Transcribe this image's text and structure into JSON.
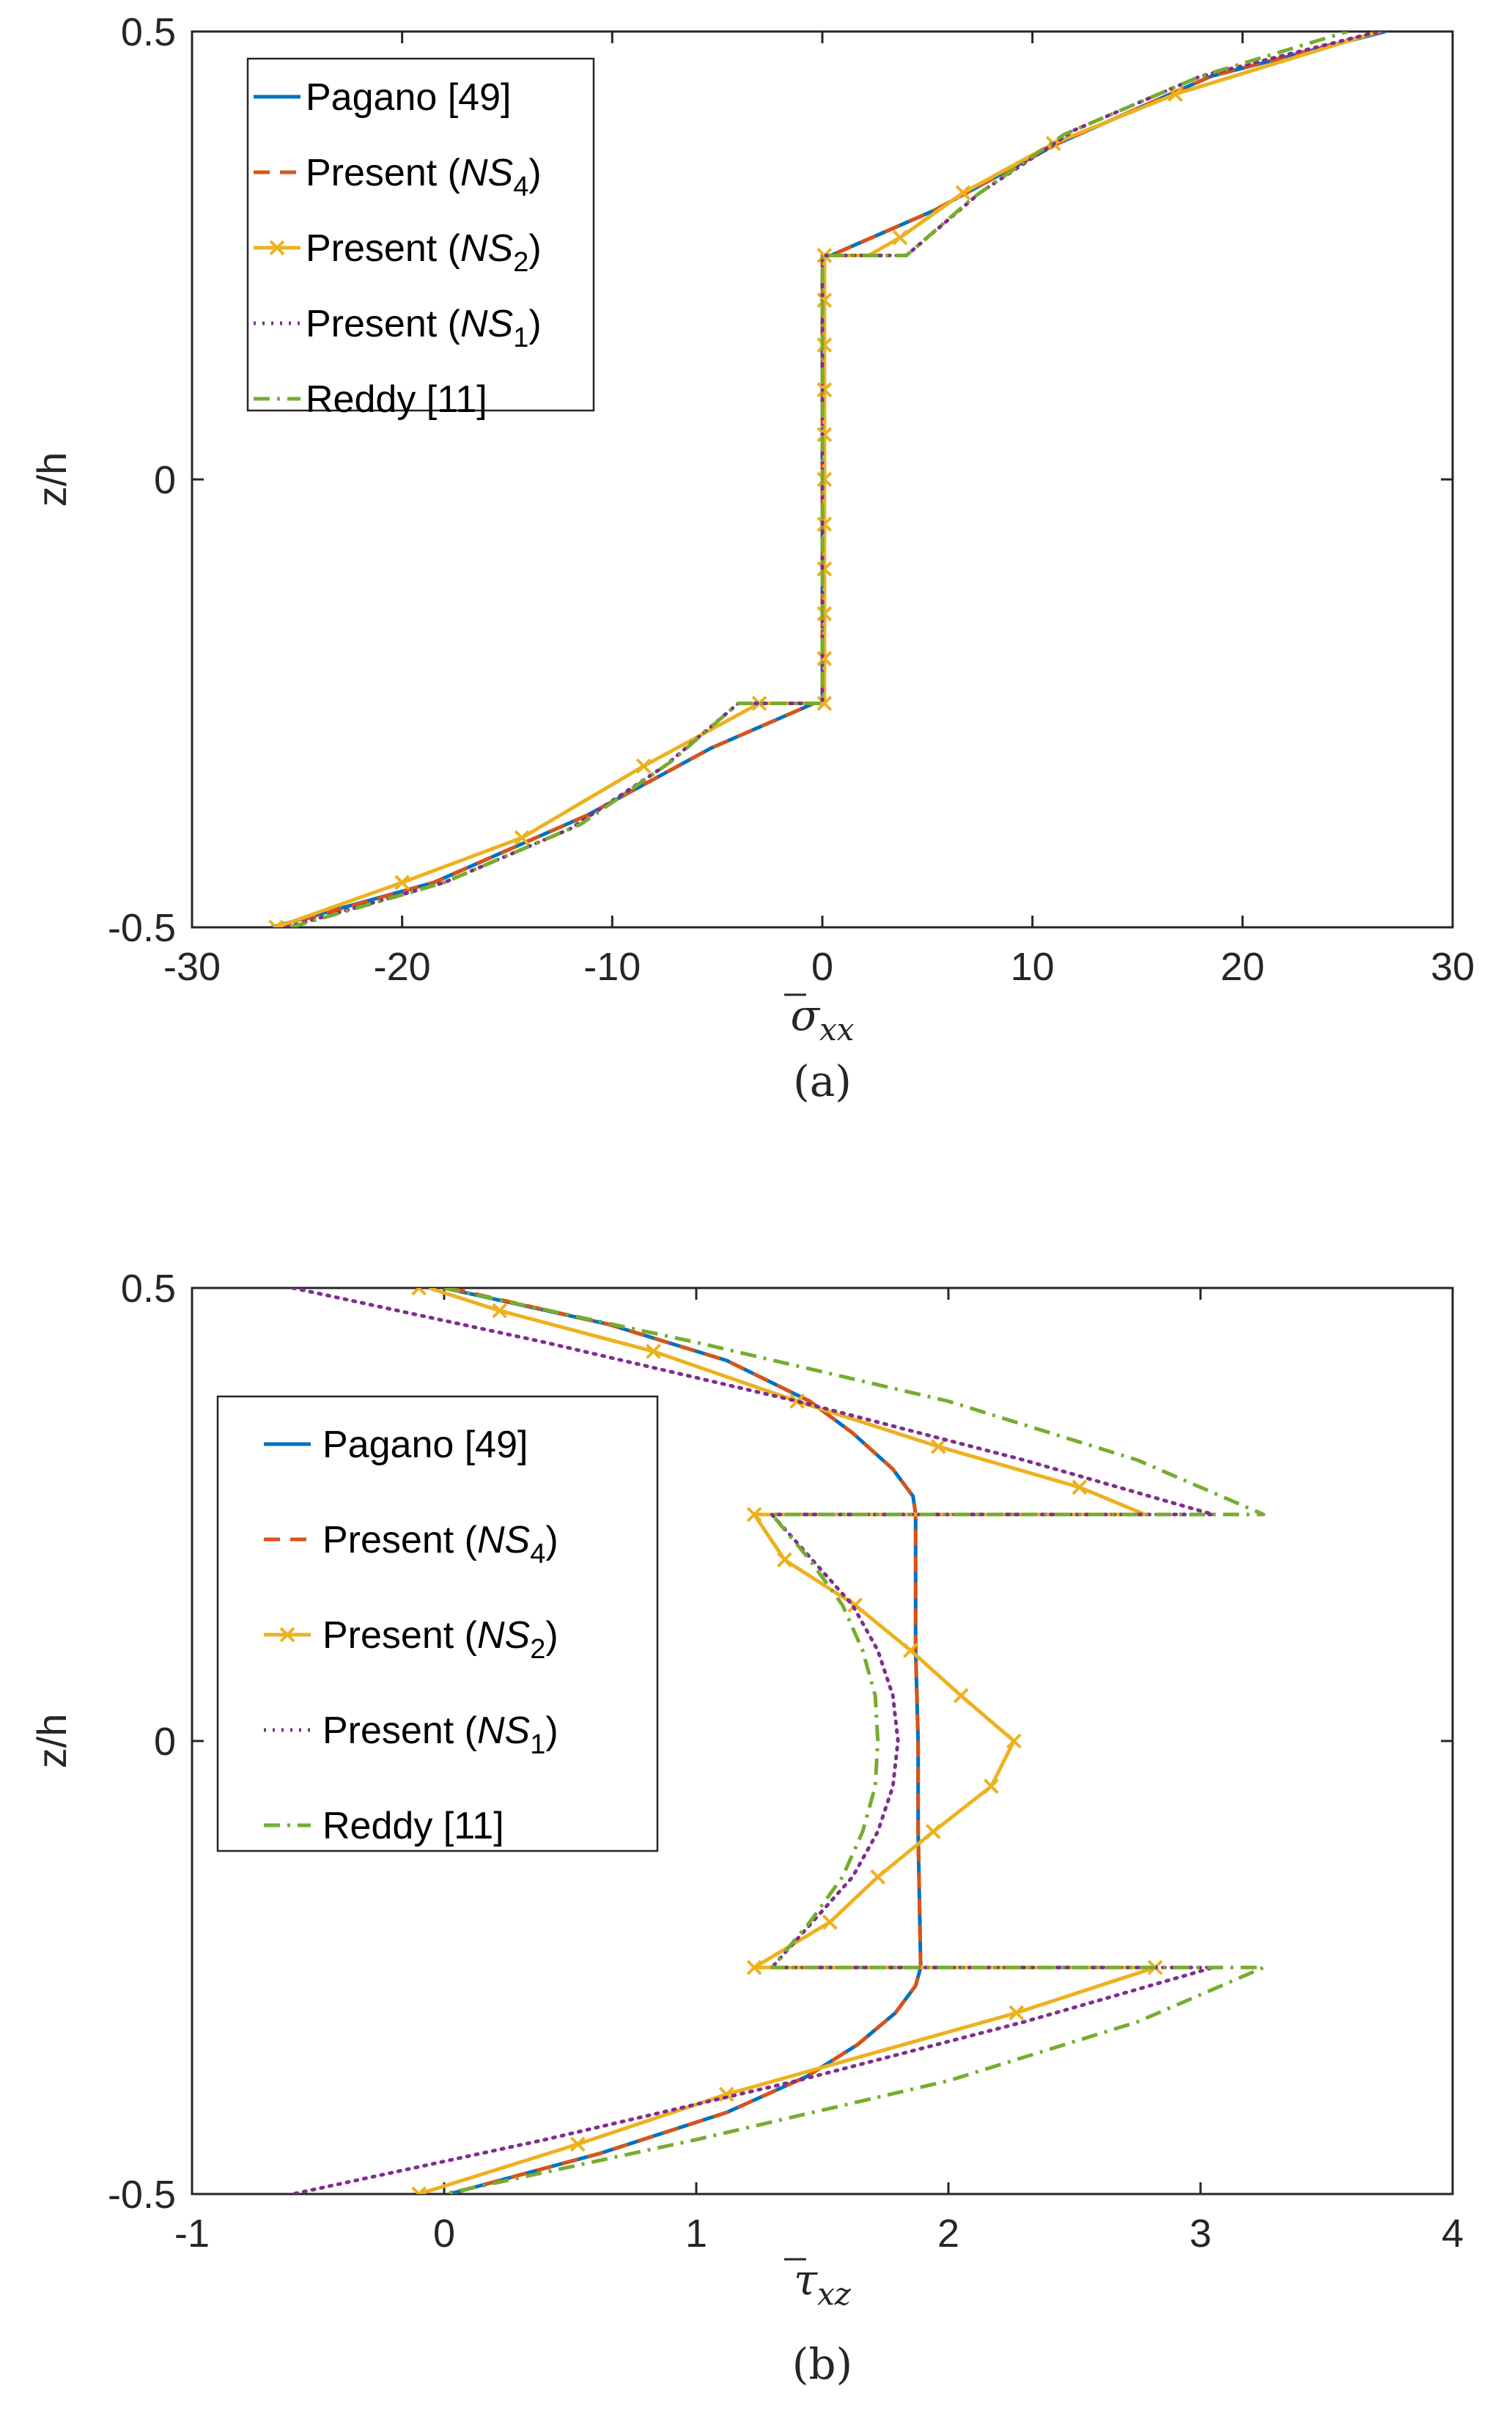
{
  "chart_data": [
    {
      "type": "line",
      "panel": "(a)",
      "caption": "(a)",
      "xlabel_base": "σ",
      "xlabel_sub": "xx",
      "ylabel": "z/h",
      "xlim": [
        -30,
        30
      ],
      "ylim": [
        -0.5,
        0.5
      ],
      "xticks": [
        "-30",
        "-20",
        "-10",
        "0",
        "10",
        "20",
        "30"
      ],
      "yticks": [
        "-0.5",
        "0",
        "0.5"
      ],
      "legend_position": "top-left",
      "legend": [
        {
          "text": "Pagano [49]"
        },
        {
          "text": "Present (",
          "ital": "NS",
          "sub": "4",
          "tail": ")"
        },
        {
          "text": "Present (",
          "ital": "NS",
          "sub": "2",
          "tail": ")"
        },
        {
          "text": "Present (",
          "ital": "NS",
          "sub": "1",
          "tail": ")"
        },
        {
          "text": "Reddy [11]"
        }
      ],
      "series": [
        {
          "name": "Pagano [49]",
          "color": "#0072BD",
          "style": "solid",
          "x": [
            -26.2,
            -18.5,
            -11.2,
            -5.3,
            -0.4,
            0.0,
            0.0,
            0.0,
            0.4,
            5.3,
            11.2,
            18.5,
            26.8
          ],
          "y": [
            -0.5,
            -0.45,
            -0.375,
            -0.3,
            -0.25,
            -0.25,
            0.0,
            0.25,
            0.25,
            0.3,
            0.375,
            0.45,
            0.5
          ]
        },
        {
          "name": "Present (NS4)",
          "color": "#D95319",
          "style": "dashed",
          "x": [
            -26.0,
            -18.5,
            -11.2,
            -5.3,
            -0.4,
            0.0,
            0.0,
            0.0,
            0.4,
            5.3,
            11.2,
            18.5,
            26.6
          ],
          "y": [
            -0.5,
            -0.45,
            -0.375,
            -0.3,
            -0.25,
            -0.25,
            0.0,
            0.25,
            0.25,
            0.3,
            0.375,
            0.45,
            0.5
          ]
        },
        {
          "name": "Present (NS2)",
          "color": "#EDB120",
          "style": "solid-x",
          "x": [
            -26.0,
            -20.0,
            -14.3,
            -8.5,
            -3.0,
            0.1,
            0.1,
            0.1,
            0.1,
            0.1,
            0.1,
            0.1,
            0.1,
            0.1,
            0.1,
            0.1,
            0.1,
            0.1,
            0.1,
            0.1,
            0.1,
            0.1,
            2.2,
            3.7,
            6.7,
            11.0,
            16.8,
            26.5
          ],
          "y": [
            -0.5,
            -0.45,
            -0.4,
            -0.32,
            -0.25,
            -0.25,
            -0.2,
            -0.15,
            -0.1,
            -0.05,
            0.0,
            0.05,
            0.1,
            0.15,
            0.2,
            0.25,
            0.25,
            0.25,
            0.25,
            0.25,
            0.25,
            0.25,
            0.25,
            0.27,
            0.32,
            0.375,
            0.43,
            0.5
          ],
          "markers": [
            [
              -26.0,
              -0.5
            ],
            [
              -20.0,
              -0.45
            ],
            [
              -14.3,
              -0.4
            ],
            [
              -8.5,
              -0.32
            ],
            [
              -3.0,
              -0.25
            ],
            [
              0.1,
              -0.25
            ],
            [
              0.1,
              -0.2
            ],
            [
              0.1,
              -0.15
            ],
            [
              0.1,
              -0.1
            ],
            [
              0.1,
              -0.05
            ],
            [
              0.1,
              0.0
            ],
            [
              0.1,
              0.05
            ],
            [
              0.1,
              0.1
            ],
            [
              0.1,
              0.15
            ],
            [
              0.1,
              0.2
            ],
            [
              0.1,
              0.25
            ],
            [
              3.7,
              0.27
            ],
            [
              6.7,
              0.32
            ],
            [
              11.0,
              0.375
            ],
            [
              16.8,
              0.43
            ]
          ]
        },
        {
          "name": "Present (NS1)",
          "color": "#7E2F8E",
          "style": "dotted",
          "x": [
            -25.5,
            -18.0,
            -12.0,
            -7.5,
            -4.0,
            0.0,
            0.0,
            0.0,
            4.0,
            7.5,
            12.0,
            18.0,
            26.5
          ],
          "y": [
            -0.5,
            -0.45,
            -0.39,
            -0.32,
            -0.25,
            -0.25,
            0.0,
            0.25,
            0.25,
            0.32,
            0.39,
            0.45,
            0.5
          ]
        },
        {
          "name": "Reddy [11]",
          "color": "#77AC30",
          "style": "dashdot",
          "x": [
            -25.3,
            -18.0,
            -11.5,
            -7.2,
            -4.0,
            0.0,
            0.0,
            0.0,
            4.0,
            7.2,
            11.5,
            18.0,
            25.0
          ],
          "y": [
            -0.5,
            -0.45,
            -0.385,
            -0.315,
            -0.25,
            -0.25,
            0.0,
            0.25,
            0.25,
            0.315,
            0.385,
            0.45,
            0.5
          ]
        }
      ]
    },
    {
      "type": "line",
      "panel": "(b)",
      "caption": "(b)",
      "xlabel_base": "τ",
      "xlabel_sub": "xz",
      "ylabel": "z/h",
      "xlim": [
        -1,
        4
      ],
      "ylim": [
        -0.5,
        0.5
      ],
      "xticks": [
        "-1",
        "0",
        "1",
        "2",
        "3",
        "4"
      ],
      "yticks": [
        "-0.5",
        "0",
        "0.5"
      ],
      "legend_position": "center-left",
      "legend": [
        {
          "text": "Pagano [49]"
        },
        {
          "text": "Present (",
          "ital": "NS",
          "sub": "4",
          "tail": ")"
        },
        {
          "text": "Present (",
          "ital": "NS",
          "sub": "2",
          "tail": ")"
        },
        {
          "text": "Present (",
          "ital": "NS",
          "sub": "1",
          "tail": ")"
        },
        {
          "text": "Reddy [11]"
        }
      ],
      "series": [
        {
          "name": "Pagano [49]",
          "color": "#0072BD",
          "style": "solid",
          "x": [
            0.0,
            0.65,
            1.12,
            1.45,
            1.62,
            1.78,
            1.86,
            1.87,
            1.87,
            1.88,
            1.88,
            1.89,
            1.87,
            1.79,
            1.64,
            1.44,
            1.12,
            0.62,
            0.02
          ],
          "y": [
            0.5,
            0.46,
            0.42,
            0.375,
            0.34,
            0.3,
            0.27,
            0.25,
            0.1,
            0.0,
            -0.1,
            -0.25,
            -0.27,
            -0.3,
            -0.335,
            -0.37,
            -0.41,
            -0.455,
            -0.5
          ]
        },
        {
          "name": "Present (NS4)",
          "color": "#D95319",
          "style": "dashed",
          "x": [
            0.02,
            0.65,
            1.12,
            1.45,
            1.62,
            1.78,
            1.86,
            1.87,
            1.87,
            1.88,
            1.88,
            1.89,
            1.87,
            1.79,
            1.64,
            1.44,
            1.12,
            0.62,
            0.02
          ],
          "y": [
            0.5,
            0.46,
            0.42,
            0.375,
            0.34,
            0.3,
            0.27,
            0.25,
            0.1,
            0.0,
            -0.1,
            -0.25,
            -0.27,
            -0.3,
            -0.335,
            -0.37,
            -0.41,
            -0.455,
            -0.5
          ]
        },
        {
          "name": "Present (NS2)",
          "color": "#EDB120",
          "style": "solid-x",
          "x": [
            -0.06,
            0.22,
            0.83,
            1.4,
            1.96,
            2.52,
            2.78,
            1.23,
            1.35,
            1.63,
            1.85,
            2.05,
            2.26,
            2.17,
            1.94,
            1.72,
            1.53,
            1.23,
            2.82,
            2.27,
            1.12,
            0.53,
            -0.1
          ],
          "y": [
            0.5,
            0.475,
            0.43,
            0.375,
            0.325,
            0.28,
            0.25,
            0.25,
            0.2,
            0.15,
            0.1,
            0.05,
            0.0,
            -0.05,
            -0.1,
            -0.15,
            -0.2,
            -0.25,
            -0.25,
            -0.3,
            -0.39,
            -0.445,
            -0.5
          ],
          "markers": [
            [
              -0.1,
              0.5
            ],
            [
              0.22,
              0.475
            ],
            [
              0.83,
              0.43
            ],
            [
              1.4,
              0.375
            ],
            [
              1.96,
              0.325
            ],
            [
              2.52,
              0.28
            ],
            [
              1.23,
              0.25
            ],
            [
              1.35,
              0.2
            ],
            [
              1.63,
              0.15
            ],
            [
              1.85,
              0.1
            ],
            [
              2.05,
              0.05
            ],
            [
              2.26,
              0.0
            ],
            [
              2.17,
              -0.05
            ],
            [
              1.94,
              -0.1
            ],
            [
              1.72,
              -0.15
            ],
            [
              1.53,
              -0.2
            ],
            [
              1.23,
              -0.25
            ],
            [
              2.82,
              -0.25
            ],
            [
              2.27,
              -0.3
            ],
            [
              1.12,
              -0.39
            ],
            [
              0.53,
              -0.445
            ],
            [
              -0.1,
              -0.5
            ]
          ]
        },
        {
          "name": "Present (NS1)",
          "color": "#7E2F8E",
          "style": "dotted",
          "x": [
            -0.6,
            0.4,
            1.4,
            2.3,
            3.05,
            1.3,
            1.46,
            1.62,
            1.72,
            1.78,
            1.8,
            1.78,
            1.72,
            1.62,
            1.46,
            1.3,
            3.05,
            2.3,
            1.4,
            0.4,
            -0.6
          ],
          "y": [
            0.5,
            0.44,
            0.375,
            0.31,
            0.25,
            0.25,
            0.2,
            0.15,
            0.1,
            0.05,
            0.0,
            -0.05,
            -0.1,
            -0.15,
            -0.2,
            -0.25,
            -0.25,
            -0.31,
            -0.375,
            -0.44,
            -0.5
          ]
        },
        {
          "name": "Reddy [11]",
          "color": "#77AC30",
          "style": "dashdot",
          "x": [
            0.0,
            1.0,
            2.0,
            2.75,
            3.25,
            1.3,
            1.45,
            1.58,
            1.66,
            1.71,
            1.72,
            1.71,
            1.66,
            1.58,
            1.45,
            1.3,
            3.25,
            2.75,
            2.0,
            1.0,
            0.0
          ],
          "y": [
            0.5,
            0.44,
            0.375,
            0.31,
            0.25,
            0.25,
            0.2,
            0.15,
            0.1,
            0.05,
            0.0,
            -0.05,
            -0.1,
            -0.15,
            -0.2,
            -0.25,
            -0.25,
            -0.31,
            -0.375,
            -0.44,
            -0.5
          ]
        }
      ]
    }
  ]
}
